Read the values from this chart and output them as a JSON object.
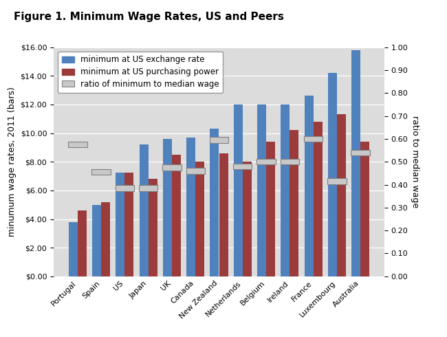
{
  "title": "Figure 1. Minimum Wage Rates, US and Peers",
  "ylabel_left": "minumum wage rates, 2011 (bars)",
  "ylabel_right": "ratio to median wage",
  "categories": [
    "Portugal",
    "Spain",
    "US",
    "Japan",
    "UK",
    "Canada",
    "New Zealand",
    "Netherlands",
    "Belgium",
    "Ireland",
    "France",
    "Luxembourg",
    "Australia"
  ],
  "exchange_rate": [
    3.8,
    5.0,
    7.25,
    9.2,
    9.6,
    9.7,
    10.3,
    12.0,
    12.0,
    12.0,
    12.6,
    14.2,
    15.8
  ],
  "purchasing_power": [
    4.6,
    5.2,
    7.25,
    6.8,
    8.5,
    8.0,
    8.6,
    8.0,
    9.4,
    10.2,
    10.8,
    11.3,
    9.4
  ],
  "ratio": [
    0.575,
    0.455,
    0.385,
    0.385,
    0.475,
    0.46,
    0.595,
    0.48,
    0.5,
    0.5,
    0.6,
    0.415,
    0.54
  ],
  "bar_color_exchange": "#4F81BD",
  "bar_color_purchasing": "#9B3B3B",
  "ratio_rect_facecolor": "#C8C8C8",
  "ratio_rect_edgecolor": "#808080",
  "ylim_left": [
    0,
    16
  ],
  "ylim_right": [
    0,
    1.0
  ],
  "yticks_left": [
    0,
    2,
    4,
    6,
    8,
    10,
    12,
    14,
    16
  ],
  "yticks_right": [
    0.0,
    0.1,
    0.2,
    0.3,
    0.4,
    0.5,
    0.6,
    0.7,
    0.8,
    0.9,
    1.0
  ],
  "plot_bg_color": "#DCDCDC",
  "figure_background": "#FFFFFF",
  "title_fontsize": 11,
  "axis_fontsize": 9,
  "tick_fontsize": 8,
  "legend_fontsize": 8.5
}
